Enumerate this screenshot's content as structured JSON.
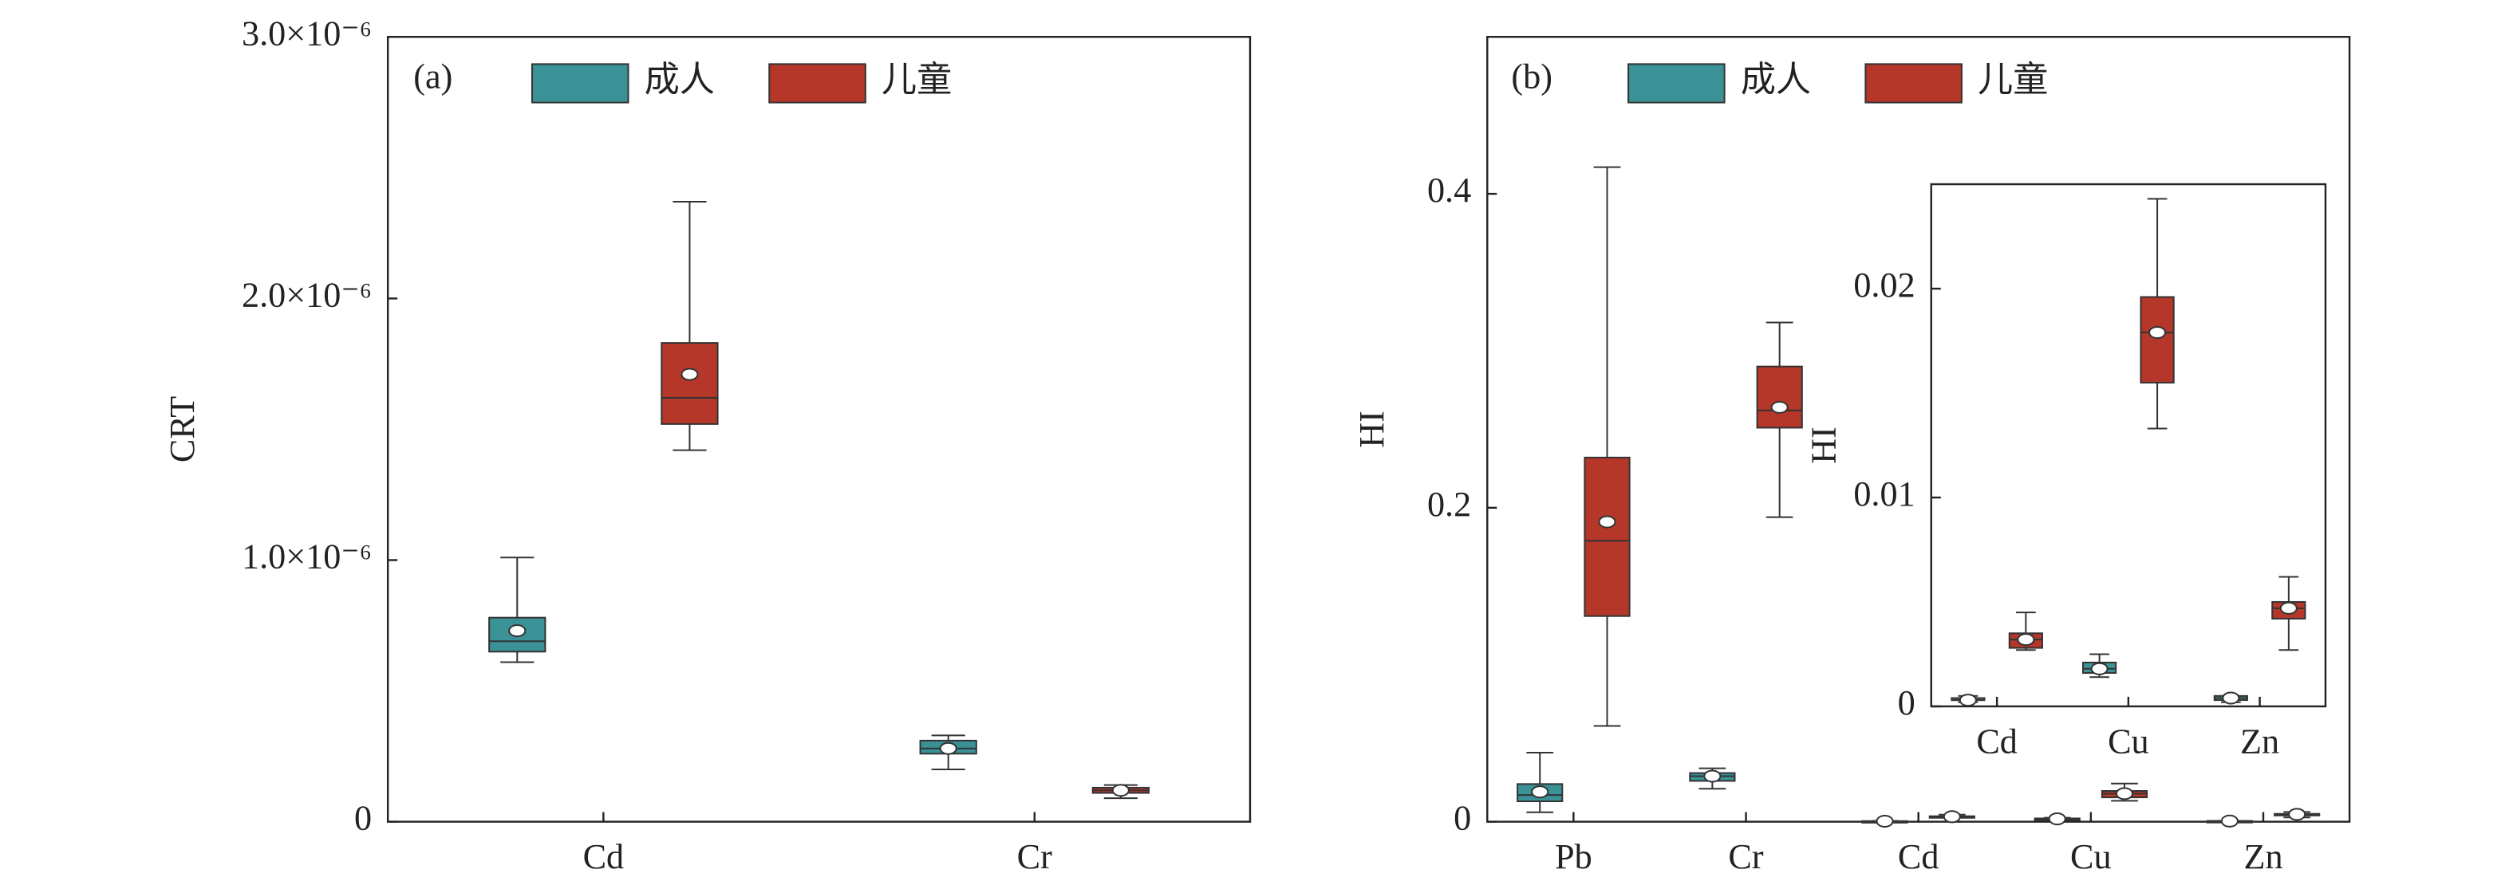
{
  "chart_data": [
    {
      "type": "box",
      "panel_label": "(a)",
      "y_label": "CRT",
      "legend": "top",
      "categories": [
        "Cd",
        "Cr"
      ],
      "ylim": [
        0,
        3e-06
      ],
      "yticks": [
        0,
        {
          "value": 1e-06,
          "label": "1.0×10⁻⁶"
        },
        {
          "value": 2e-06,
          "label": "2.0×10⁻⁶"
        },
        {
          "value": 3e-06,
          "label": "3.0×10⁻⁶"
        }
      ],
      "series": [
        {
          "name": "成人",
          "color": "#3a9196",
          "min": [
            6.1e-07,
            2e-07
          ],
          "q1": [
            6.5e-07,
            2.6e-07
          ],
          "median": [
            6.9e-07,
            2.8e-07
          ],
          "q3": [
            7.8e-07,
            3.1e-07
          ],
          "max": [
            1.01e-06,
            3.3e-07
          ],
          "mean": [
            7.3e-07,
            2.8e-07
          ]
        },
        {
          "name": "儿童",
          "color": "#b5372a",
          "min": [
            1.42e-06,
            9e-08
          ],
          "q1": [
            1.52e-06,
            1.1e-07
          ],
          "median": [
            1.62e-06,
            1.2e-07
          ],
          "q3": [
            1.83e-06,
            1.3e-07
          ],
          "max": [
            2.37e-06,
            1.4e-07
          ],
          "mean": [
            1.71e-06,
            1.2e-07
          ]
        }
      ]
    },
    {
      "type": "box",
      "panel_label": "(b)",
      "y_label": "HI",
      "legend": "top",
      "categories": [
        "Pb",
        "Cr",
        "Cd",
        "Cu",
        "Zn"
      ],
      "ylim": [
        0,
        0.5
      ],
      "yticks": [
        0,
        0.2,
        0.4
      ],
      "series": [
        {
          "name": "成人",
          "color": "#3a9196",
          "min": [
            0.006,
            0.021,
            0.0002,
            0.0014,
            0.0002
          ],
          "q1": [
            0.013,
            0.026,
            0.0003,
            0.0016,
            0.0003
          ],
          "median": [
            0.017,
            0.029,
            0.0003,
            0.0018,
            0.0004
          ],
          "q3": [
            0.024,
            0.031,
            0.0004,
            0.0021,
            0.0005
          ],
          "max": [
            0.044,
            0.034,
            0.0005,
            0.0025,
            0.0005
          ],
          "mean": [
            0.019,
            0.029,
            0.0003,
            0.0018,
            0.0004
          ]
        },
        {
          "name": "儿童",
          "color": "#b5372a",
          "min": [
            0.061,
            0.194,
            0.0027,
            0.0133,
            0.0027
          ],
          "q1": [
            0.131,
            0.251,
            0.0028,
            0.0155,
            0.0042
          ],
          "median": [
            0.179,
            0.262,
            0.0032,
            0.0179,
            0.0047
          ],
          "q3": [
            0.232,
            0.29,
            0.0035,
            0.0196,
            0.005
          ],
          "max": [
            0.417,
            0.318,
            0.0045,
            0.0243,
            0.0062
          ],
          "mean": [
            0.191,
            0.264,
            0.0032,
            0.0179,
            0.0047
          ]
        }
      ]
    },
    {
      "type": "box",
      "y_label": "HI",
      "categories": [
        "Cd",
        "Cu",
        "Zn"
      ],
      "ylim": [
        0,
        0.025
      ],
      "yticks": [
        0,
        0.01,
        0.02
      ],
      "series": [
        {
          "name": "成人",
          "color": "#3a9196",
          "min": [
            0.0002,
            0.0014,
            0.0002
          ],
          "q1": [
            0.0003,
            0.0016,
            0.0003
          ],
          "median": [
            0.0003,
            0.0018,
            0.0004
          ],
          "q3": [
            0.0004,
            0.0021,
            0.0005
          ],
          "max": [
            0.0005,
            0.0025,
            0.0005
          ],
          "mean": [
            0.0003,
            0.0018,
            0.0004
          ]
        },
        {
          "name": "儿童",
          "color": "#b5372a",
          "min": [
            0.0027,
            0.0133,
            0.0027
          ],
          "q1": [
            0.0028,
            0.0155,
            0.0042
          ],
          "median": [
            0.0032,
            0.0179,
            0.0047
          ],
          "q3": [
            0.0035,
            0.0196,
            0.005
          ],
          "max": [
            0.0045,
            0.0243,
            0.0062
          ],
          "mean": [
            0.0032,
            0.0179,
            0.0047
          ]
        }
      ]
    }
  ]
}
